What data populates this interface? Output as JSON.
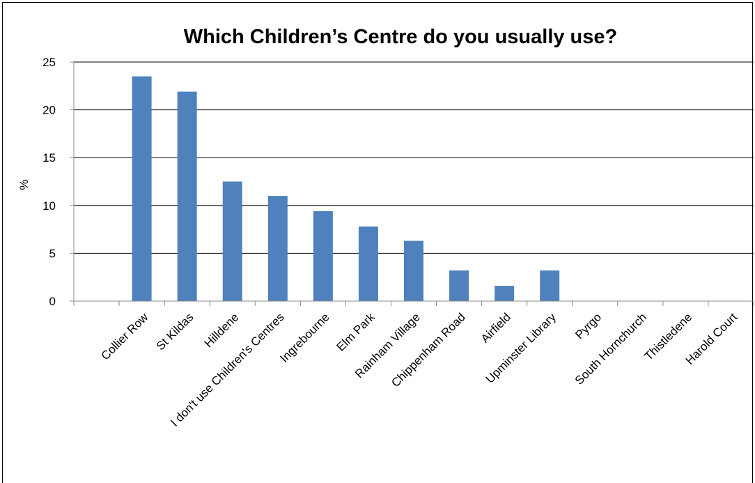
{
  "chart_data": {
    "type": "bar",
    "title": "Which Children’s Centre do you usually use?",
    "xlabel": "",
    "ylabel": "%",
    "ylim": [
      0,
      25
    ],
    "yticks": [
      0,
      5,
      10,
      15,
      20,
      25
    ],
    "grid": true,
    "legend": "none",
    "bar_color": "#4f81bd",
    "categories": [
      "Collier Row",
      "St Kildas",
      "Hilldene",
      "I don't use Children's Centres",
      "Ingrebourne",
      "Elm Park",
      "Rainham Village",
      "Chippenham Road",
      "Airfield",
      "Upminster Library",
      "Pyrgo",
      "South Hornchurch",
      "Thistledene",
      "Harold Court"
    ],
    "values": [
      23.5,
      21.9,
      12.5,
      11.0,
      9.4,
      7.8,
      6.3,
      3.2,
      1.6,
      3.2,
      0,
      0,
      0,
      0
    ]
  }
}
